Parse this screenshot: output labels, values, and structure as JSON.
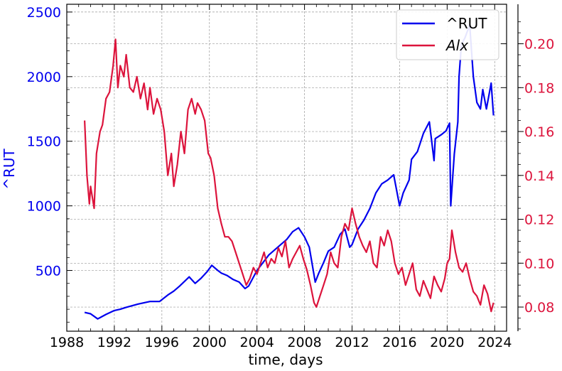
{
  "chart_data": {
    "type": "line",
    "xlabel": "time, days",
    "ylabel_left": "^RUT",
    "ylabel_right": "",
    "x_ticks": [
      "1988",
      "1992",
      "1996",
      "2000",
      "2004",
      "2008",
      "2012",
      "2016",
      "2020",
      "2024"
    ],
    "x_range": [
      1988.0,
      2025.0
    ],
    "y_left_ticks": [
      "500",
      "1000",
      "1500",
      "2000",
      "2500"
    ],
    "y_left_range": [
      30,
      2560
    ],
    "y_right_ticks": [
      "0.08",
      "0.10",
      "0.12",
      "0.14",
      "0.16",
      "0.18",
      "0.20"
    ],
    "y_right_range": [
      0.069,
      0.218
    ],
    "grid": true,
    "legend_position": "top-right",
    "colors": {
      "rut": "#0000ee",
      "alx": "#dc143c",
      "left_axis": "#0000ee",
      "right_axis": "#dc143c"
    },
    "series": [
      {
        "name": "^RUT",
        "axis": "left",
        "x": [
          1989.5,
          1990.0,
          1990.6,
          1990.9,
          1991.3,
          1992.0,
          1992.5,
          1993.0,
          1994.0,
          1995.0,
          1995.8,
          1996.5,
          1997.0,
          1997.5,
          1998.3,
          1998.8,
          1999.3,
          1999.8,
          2000.2,
          2000.7,
          2001.0,
          2001.5,
          2002.0,
          2002.5,
          2003.0,
          2003.3,
          2004.0,
          2005.0,
          2006.0,
          2006.5,
          2007.0,
          2007.5,
          2008.0,
          2008.4,
          2008.9,
          2009.2,
          2009.6,
          2010.0,
          2010.5,
          2011.0,
          2011.4,
          2011.8,
          2012.0,
          2012.5,
          2013.0,
          2013.5,
          2014.0,
          2014.5,
          2015.0,
          2015.5,
          2016.0,
          2016.3,
          2016.8,
          2017.0,
          2017.5,
          2018.0,
          2018.5,
          2018.9,
          2019.0,
          2019.5,
          2019.9,
          2020.2,
          2020.3,
          2020.6,
          2020.9,
          2021.0,
          2021.2,
          2021.5,
          2021.9,
          2022.2,
          2022.5,
          2022.8,
          2023.0,
          2023.3,
          2023.7,
          2023.9
        ],
        "values": [
          175,
          165,
          125,
          140,
          160,
          190,
          200,
          215,
          240,
          260,
          260,
          310,
          340,
          380,
          450,
          400,
          440,
          490,
          540,
          500,
          480,
          460,
          430,
          410,
          360,
          380,
          500,
          620,
          700,
          740,
          800,
          830,
          760,
          680,
          410,
          480,
          560,
          650,
          680,
          780,
          820,
          680,
          700,
          820,
          890,
          980,
          1100,
          1170,
          1200,
          1240,
          1000,
          1100,
          1200,
          1360,
          1420,
          1560,
          1650,
          1350,
          1520,
          1550,
          1580,
          1640,
          1000,
          1400,
          1650,
          2000,
          2250,
          2300,
          2400,
          2000,
          1800,
          1750,
          1900,
          1750,
          1950,
          1700
        ]
      },
      {
        "name": "Alx",
        "axis": "right",
        "x": [
          1989.5,
          1989.7,
          1989.9,
          1990.0,
          1990.3,
          1990.5,
          1990.8,
          1991.0,
          1991.3,
          1991.6,
          1991.9,
          1992.1,
          1992.3,
          1992.5,
          1992.8,
          1993.0,
          1993.3,
          1993.6,
          1993.9,
          1994.2,
          1994.5,
          1994.8,
          1995.0,
          1995.3,
          1995.6,
          1995.9,
          1996.2,
          1996.5,
          1996.8,
          1997.0,
          1997.3,
          1997.6,
          1997.9,
          1998.2,
          1998.5,
          1998.8,
          1999.0,
          1999.3,
          1999.6,
          1999.9,
          2000.1,
          2000.4,
          2000.7,
          2001.0,
          2001.3,
          2001.6,
          2001.9,
          2002.2,
          2002.5,
          2002.8,
          2003.1,
          2003.4,
          2003.7,
          2004.0,
          2004.3,
          2004.6,
          2004.9,
          2005.2,
          2005.5,
          2005.8,
          2006.1,
          2006.4,
          2006.7,
          2007.0,
          2007.3,
          2007.6,
          2007.9,
          2008.2,
          2008.5,
          2008.8,
          2009.0,
          2009.3,
          2009.6,
          2009.9,
          2010.2,
          2010.5,
          2010.8,
          2011.1,
          2011.4,
          2011.7,
          2012.0,
          2012.3,
          2012.6,
          2012.9,
          2013.2,
          2013.5,
          2013.8,
          2014.1,
          2014.4,
          2014.7,
          2015.0,
          2015.3,
          2015.6,
          2015.9,
          2016.2,
          2016.5,
          2016.8,
          2017.1,
          2017.4,
          2017.7,
          2018.0,
          2018.3,
          2018.6,
          2018.9,
          2019.2,
          2019.5,
          2019.8,
          2020.0,
          2020.2,
          2020.4,
          2020.7,
          2021.0,
          2021.3,
          2021.6,
          2021.9,
          2022.2,
          2022.5,
          2022.8,
          2023.1,
          2023.4,
          2023.7,
          2023.9
        ],
        "values": [
          0.165,
          0.14,
          0.127,
          0.135,
          0.125,
          0.15,
          0.16,
          0.163,
          0.175,
          0.178,
          0.19,
          0.202,
          0.18,
          0.19,
          0.185,
          0.195,
          0.18,
          0.178,
          0.185,
          0.175,
          0.182,
          0.17,
          0.18,
          0.168,
          0.175,
          0.17,
          0.16,
          0.14,
          0.15,
          0.135,
          0.145,
          0.16,
          0.15,
          0.17,
          0.175,
          0.168,
          0.173,
          0.17,
          0.165,
          0.15,
          0.148,
          0.14,
          0.125,
          0.118,
          0.112,
          0.112,
          0.11,
          0.105,
          0.1,
          0.095,
          0.09,
          0.093,
          0.098,
          0.095,
          0.1,
          0.105,
          0.098,
          0.102,
          0.1,
          0.107,
          0.103,
          0.11,
          0.098,
          0.102,
          0.105,
          0.108,
          0.102,
          0.097,
          0.09,
          0.082,
          0.08,
          0.085,
          0.09,
          0.095,
          0.105,
          0.1,
          0.098,
          0.112,
          0.118,
          0.115,
          0.125,
          0.118,
          0.112,
          0.108,
          0.105,
          0.11,
          0.1,
          0.098,
          0.112,
          0.108,
          0.115,
          0.11,
          0.1,
          0.095,
          0.098,
          0.09,
          0.095,
          0.1,
          0.088,
          0.085,
          0.092,
          0.088,
          0.084,
          0.094,
          0.09,
          0.087,
          0.093,
          0.1,
          0.102,
          0.115,
          0.105,
          0.098,
          0.096,
          0.1,
          0.093,
          0.087,
          0.085,
          0.081,
          0.09,
          0.086,
          0.078,
          0.082
        ]
      }
    ]
  }
}
